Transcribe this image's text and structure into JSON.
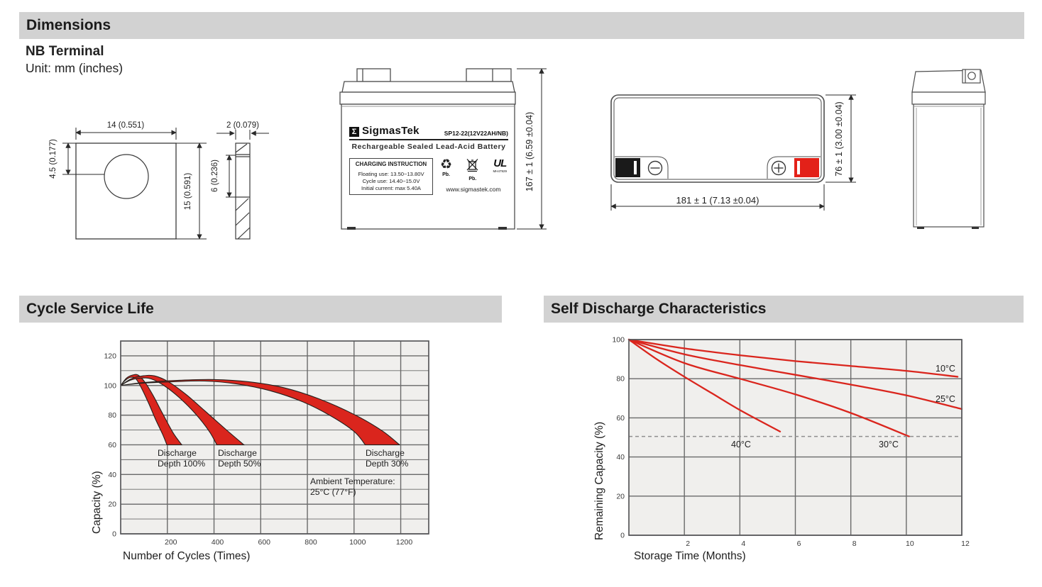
{
  "header": {
    "title": "Dimensions"
  },
  "terminal": {
    "heading": "NB Terminal",
    "unit": "Unit: mm (inches)"
  },
  "sections": {
    "cycle": "Cycle Service Life",
    "sd": "Self Discharge Characteristics"
  },
  "dims": {
    "t_width": "14 (0.551)",
    "t_hole": "4.5 (0.177)",
    "t_height": "15 (0.591)",
    "t_thick": "2 (0.079)",
    "t_mid": "6 (0.236)",
    "f_height": "167 ± 1 (6.59 ±0.04)",
    "tv_width": "181 ± 1 (7.13 ±0.04)",
    "tv_depth": "76 ± 1 (3.00 ±0.04)"
  },
  "label": {
    "logo_glyph": "Σ",
    "brand": "SigmasTek",
    "model": "SP12-22(12V22AH/NB)",
    "subtitle": "Rechargeable Sealed Lead-Acid Battery",
    "charging_title": "CHARGING INSTRUCTION",
    "charging_l1": "Floating use: 13.50~13.80V",
    "charging_l2": "Cycle use: 14.40~15.0V",
    "charging_l3": "Initial current: max 5.40A",
    "recycle_glyph": "♻",
    "pb1": "Pb.",
    "pb2": "Pb.",
    "ul_text": "UL",
    "ul_code": "MH47929",
    "site": "www.sigmastek.com"
  },
  "colors": {
    "accent": "#da251d",
    "grid": "#6a6a6a",
    "plot_bg": "#f0efed",
    "border": "#57575a"
  },
  "chart_data": [
    {
      "type": "area",
      "title": "Cycle Service Life",
      "xlabel": "Number of Cycles (Times)",
      "ylabel": "Capacity (%)",
      "xlim": [
        0,
        1320
      ],
      "ylim": [
        0,
        130
      ],
      "x_ticks": [
        200,
        400,
        600,
        800,
        1000,
        1200
      ],
      "y_ticks": [
        0,
        20,
        40,
        60,
        80,
        100,
        120
      ],
      "y_minor_step": 10,
      "grid": true,
      "bands": [
        {
          "name": "Discharge Depth 100%",
          "upper": [
            [
              0,
              100
            ],
            [
              25,
              105
            ],
            [
              50,
              107
            ],
            [
              75,
              107
            ],
            [
              105,
              102
            ],
            [
              140,
              93
            ],
            [
              180,
              81
            ],
            [
              225,
              68
            ],
            [
              262,
              60
            ]
          ],
          "lower": [
            [
              0,
              100
            ],
            [
              20,
              103.5
            ],
            [
              42,
              105.5
            ],
            [
              65,
              104.5
            ],
            [
              90,
              98
            ],
            [
              120,
              88
            ],
            [
              150,
              77
            ],
            [
              180,
              67
            ],
            [
              198,
              60
            ]
          ]
        },
        {
          "name": "Discharge Depth 50%",
          "upper": [
            [
              0,
              100
            ],
            [
              45,
              104.5
            ],
            [
              95,
              106.5
            ],
            [
              145,
              106.5
            ],
            [
              205,
              102.5
            ],
            [
              280,
              94
            ],
            [
              360,
              83
            ],
            [
              450,
              70.5
            ],
            [
              528,
              60
            ]
          ],
          "lower": [
            [
              0,
              100
            ],
            [
              40,
              103.5
            ],
            [
              85,
              105
            ],
            [
              130,
              104.5
            ],
            [
              185,
              100
            ],
            [
              250,
              92
            ],
            [
              320,
              81
            ],
            [
              380,
              69
            ],
            [
              412,
              60
            ]
          ]
        },
        {
          "name": "Discharge Depth 30%",
          "upper": [
            [
              0,
              100
            ],
            [
              100,
              102
            ],
            [
              250,
              103.5
            ],
            [
              400,
              104
            ],
            [
              550,
              102.5
            ],
            [
              700,
              98.5
            ],
            [
              850,
              91
            ],
            [
              1000,
              80.5
            ],
            [
              1120,
              69.5
            ],
            [
              1195,
              60
            ]
          ],
          "lower": [
            [
              0,
              100
            ],
            [
              90,
              101.5
            ],
            [
              220,
              102.5
            ],
            [
              360,
              103
            ],
            [
              500,
              101
            ],
            [
              640,
              96.5
            ],
            [
              780,
              89
            ],
            [
              900,
              79.5
            ],
            [
              1000,
              69
            ],
            [
              1048,
              60
            ]
          ]
        }
      ],
      "annotations": {
        "dd100": "Discharge\nDepth 100%",
        "dd50": "Discharge\nDepth 50%",
        "dd30": "Discharge\nDepth 30%",
        "ambient": "Ambient Temperature:\n25°C (77°F)"
      }
    },
    {
      "type": "line",
      "title": "Self Discharge Characteristics",
      "xlabel": "Storage Time (Months)",
      "ylabel": "Remaining Capacity (%)",
      "xlim": [
        0,
        12
      ],
      "ylim": [
        0,
        100
      ],
      "x_ticks": [
        2,
        4,
        6,
        8,
        10,
        12
      ],
      "y_ticks": [
        0,
        20,
        40,
        60,
        80,
        100
      ],
      "grid": true,
      "dashed_y": 50.5,
      "lines": [
        {
          "label": "10°C",
          "points": [
            [
              0,
              100
            ],
            [
              2,
              95.5
            ],
            [
              4,
              92
            ],
            [
              6,
              89
            ],
            [
              8,
              86.5
            ],
            [
              10,
              84
            ],
            [
              11.85,
              81
            ]
          ]
        },
        {
          "label": "25°C",
          "points": [
            [
              0,
              100
            ],
            [
              2,
              92.5
            ],
            [
              4,
              87
            ],
            [
              6,
              82
            ],
            [
              8,
              77
            ],
            [
              10,
              71.5
            ],
            [
              12,
              64.5
            ]
          ]
        },
        {
          "label": "30°C",
          "points": [
            [
              0,
              100
            ],
            [
              2,
              88
            ],
            [
              4,
              80
            ],
            [
              6,
              72
            ],
            [
              8,
              62.5
            ],
            [
              10.1,
              50.5
            ]
          ]
        },
        {
          "label": "40°C",
          "points": [
            [
              0,
              100
            ],
            [
              1,
              90
            ],
            [
              2,
              81
            ],
            [
              3,
              72.5
            ],
            [
              4,
              64
            ],
            [
              5.45,
              53
            ]
          ]
        }
      ],
      "annotations": {
        "t10": "10°C",
        "t25": "25°C",
        "t30": "30°C",
        "t40": "40°C"
      }
    }
  ]
}
